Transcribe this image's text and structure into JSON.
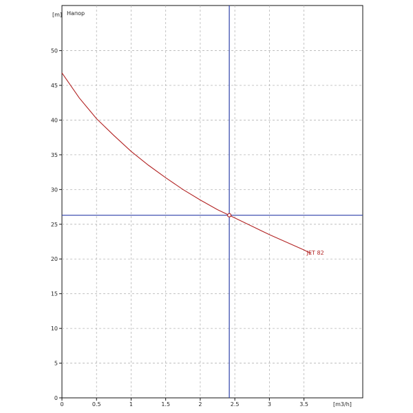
{
  "chart_data": {
    "type": "line",
    "title": "Напор",
    "ylabel": "[m]",
    "xlabel": "[m3/h]",
    "xlim": [
      0,
      4.35
    ],
    "ylim": [
      0,
      56.5
    ],
    "x_ticks": [
      0,
      0.5,
      1,
      1.5,
      2,
      2.5,
      3,
      3.5
    ],
    "x_tick_labels": [
      "0",
      "0.5",
      "1",
      "1.5",
      "2",
      "2.5",
      "3",
      "3.5"
    ],
    "y_ticks": [
      0,
      5,
      10,
      15,
      20,
      25,
      30,
      35,
      40,
      45,
      50
    ],
    "y_tick_labels": [
      "0",
      "5",
      "10",
      "15",
      "20",
      "25",
      "30",
      "35",
      "40",
      "45",
      "50"
    ],
    "grid": true,
    "series": [
      {
        "name": "JET 82",
        "color": "#b22222",
        "x": [
          0,
          0.25,
          0.5,
          0.75,
          1,
          1.25,
          1.5,
          1.75,
          2,
          2.25,
          2.42,
          2.75,
          3,
          3.25,
          3.5,
          3.6
        ],
        "y": [
          46.8,
          43.2,
          40.2,
          37.8,
          35.5,
          33.5,
          31.7,
          30,
          28.5,
          27.1,
          26.3,
          24.7,
          23.5,
          22.4,
          21.3,
          20.8
        ]
      }
    ],
    "operating_point": {
      "x": 2.42,
      "y": 26.3,
      "line_color": "#2b3fa8"
    }
  }
}
